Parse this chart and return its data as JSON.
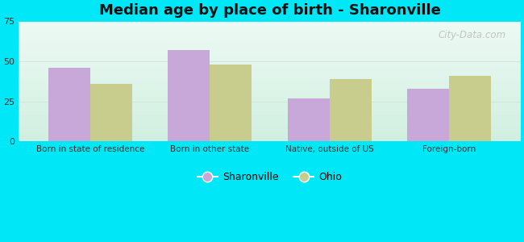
{
  "title": "Median age by place of birth - Sharonville",
  "categories": [
    "Born in state of residence",
    "Born in other state",
    "Native, outside of US",
    "Foreign-born"
  ],
  "sharonville_values": [
    46,
    57,
    27,
    33
  ],
  "ohio_values": [
    36,
    48,
    39,
    41
  ],
  "sharonville_color": "#c8a8d8",
  "ohio_color": "#c8cc8c",
  "bar_width": 0.35,
  "ylim": [
    0,
    75
  ],
  "yticks": [
    0,
    25,
    50,
    75
  ],
  "legend_sharonville": "Sharonville",
  "legend_ohio": "Ohio",
  "background_outer": "#00e8f8",
  "bg_top_left": "#e0f5ec",
  "bg_top_right": "#daf0f0",
  "bg_bottom_left": "#c8ecd8",
  "bg_bottom_right": "#c8eae0",
  "watermark": "City-Data.com",
  "grid_color": "#e0ece0"
}
